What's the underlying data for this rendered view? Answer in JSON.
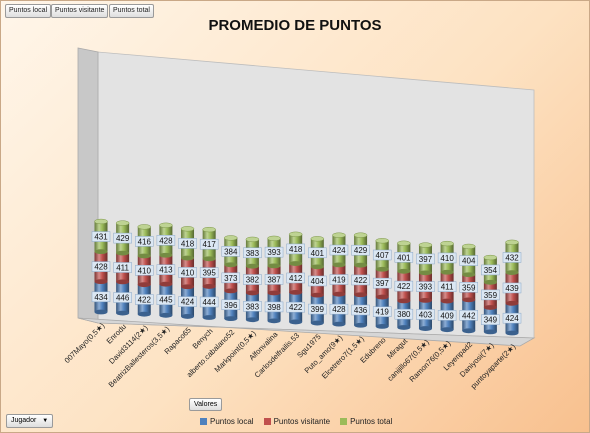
{
  "field_buttons": [
    "Puntos local",
    "Puntos visitante",
    "Puntos total"
  ],
  "valores_label": "Valores",
  "jugador_label": "Jugador",
  "chart_data": {
    "type": "bar",
    "stacked": true,
    "style": "3d-cylinder",
    "title": "PROMEDIO DE PUNTOS",
    "categories": [
      "007Mayo(0,5★)",
      "Enrodu",
      "David3114(2★)",
      "BeatrizBallesteros(3,5★)",
      "Rapaco65",
      "Benych",
      "alberto.cabalano52",
      "Markpoint(0,5★)",
      "Alfonvalina",
      "Carlosdelfrailis.53",
      "Sgu1975",
      "Puto_amo(9★)",
      "Elcetrero7(1,5★)",
      "Edubreno",
      "Miragut",
      "canijillo67(0,5★)",
      "Ramon76(0,5★)",
      "Leyenpad2",
      "Daniyosi(7★)",
      "puntoyaparte(2★)"
    ],
    "series": [
      {
        "name": "Puntos local",
        "color": "#4f81bd",
        "values": [
          434,
          446,
          422,
          445,
          424,
          444,
          396,
          383,
          398,
          422,
          399,
          428,
          436,
          419,
          380,
          403,
          409,
          442,
          349,
          424
        ]
      },
      {
        "name": "Puntos visitante",
        "color": "#c0504d",
        "values": [
          428,
          411,
          410,
          413,
          410,
          395,
          373,
          382,
          387,
          412,
          404,
          419,
          422,
          397,
          422,
          393,
          411,
          359,
          359,
          439
        ]
      },
      {
        "name": "Puntos total",
        "color": "#9bbb59",
        "values": [
          431,
          429,
          416,
          428,
          418,
          417,
          384,
          383,
          393,
          418,
          401,
          424,
          429,
          407,
          401,
          397,
          410,
          404,
          354,
          432
        ]
      }
    ],
    "legend_position": "bottom"
  }
}
